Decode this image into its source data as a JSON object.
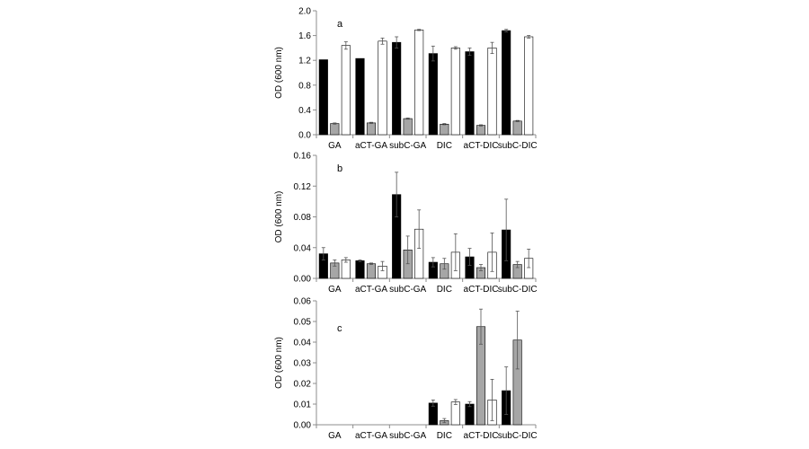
{
  "colors": {
    "series_1": "#000000",
    "series_2": "#a6a6a6",
    "series_3": "#ffffff",
    "outline": "#000000",
    "axis": "#8c8c8c"
  },
  "chart_data": [
    {
      "type": "bar",
      "panel_label": "a",
      "ylabel": "OD (600 nm)",
      "categories": [
        "GA",
        "aCT-GA",
        "subC-GA",
        "DIC",
        "aCT-DIC",
        "subC-DIC"
      ],
      "ylim": [
        0,
        2.0
      ],
      "yticks": [
        0.0,
        0.4,
        0.8,
        1.2,
        1.6,
        2.0
      ],
      "ytick_labels": [
        "0.0",
        "0.4",
        "0.8",
        "1.2",
        "1.6",
        "2.0"
      ],
      "grid": false,
      "legend": "none",
      "series": [
        {
          "values": [
            1.21,
            1.23,
            1.49,
            1.31,
            1.34,
            1.68
          ],
          "errors": [
            0,
            0,
            0.09,
            0.12,
            0.06,
            0.02
          ]
        },
        {
          "values": [
            0.18,
            0.19,
            0.26,
            0.17,
            0.15,
            0.22
          ],
          "errors": [
            0.01,
            0.01,
            0.01,
            0.01,
            0.01,
            0.01
          ]
        },
        {
          "values": [
            1.44,
            1.51,
            1.69,
            1.4,
            1.4,
            1.58
          ],
          "errors": [
            0.06,
            0.05,
            0.01,
            0.02,
            0.09,
            0.02
          ]
        }
      ]
    },
    {
      "type": "bar",
      "panel_label": "b",
      "ylabel": "OD (600 nm)",
      "categories": [
        "GA",
        "aCT-GA",
        "subC-GA",
        "DIC",
        "aCT-DIC",
        "subC-DIC"
      ],
      "ylim": [
        0,
        0.16
      ],
      "yticks": [
        0.0,
        0.04,
        0.08,
        0.12,
        0.16
      ],
      "ytick_labels": [
        "0.00",
        "0.04",
        "0.08",
        "0.12",
        "0.16"
      ],
      "grid": false,
      "legend": "none",
      "series": [
        {
          "values": [
            0.032,
            0.023,
            0.109,
            0.021,
            0.028,
            0.063
          ],
          "errors": [
            0.008,
            0.001,
            0.029,
            0.006,
            0.011,
            0.04
          ]
        },
        {
          "values": [
            0.02,
            0.019,
            0.037,
            0.019,
            0.014,
            0.018
          ],
          "errors": [
            0.004,
            0.001,
            0.018,
            0.007,
            0.004,
            0.004
          ]
        },
        {
          "values": [
            0.024,
            0.016,
            0.064,
            0.034,
            0.034,
            0.026
          ],
          "errors": [
            0.003,
            0.006,
            0.025,
            0.024,
            0.025,
            0.012
          ]
        }
      ]
    },
    {
      "type": "bar",
      "panel_label": "c",
      "ylabel": "OD (600 nm)",
      "categories": [
        "GA",
        "aCT-GA",
        "subC-GA",
        "DIC",
        "aCT-DIC",
        "subC-DIC"
      ],
      "ylim": [
        0,
        0.06
      ],
      "yticks": [
        0.0,
        0.01,
        0.02,
        0.03,
        0.04,
        0.05,
        0.06
      ],
      "ytick_labels": [
        "0.00",
        "0.01",
        "0.02",
        "0.03",
        "0.04",
        "0.05",
        "0.06"
      ],
      "grid": false,
      "legend": "none",
      "series": [
        {
          "values": [
            0,
            0,
            0,
            0.0105,
            0.01,
            0.0165
          ],
          "errors": [
            0,
            0,
            0,
            0.0015,
            0.0012,
            0.0115
          ]
        },
        {
          "values": [
            0,
            0,
            0,
            0.002,
            0.0475,
            0.041
          ],
          "errors": [
            0,
            0,
            0,
            0.001,
            0.0085,
            0.014
          ]
        },
        {
          "values": [
            0,
            0,
            0,
            0.011,
            0.012,
            0
          ],
          "errors": [
            0,
            0,
            0,
            0.0012,
            0.01,
            0
          ]
        }
      ]
    }
  ]
}
